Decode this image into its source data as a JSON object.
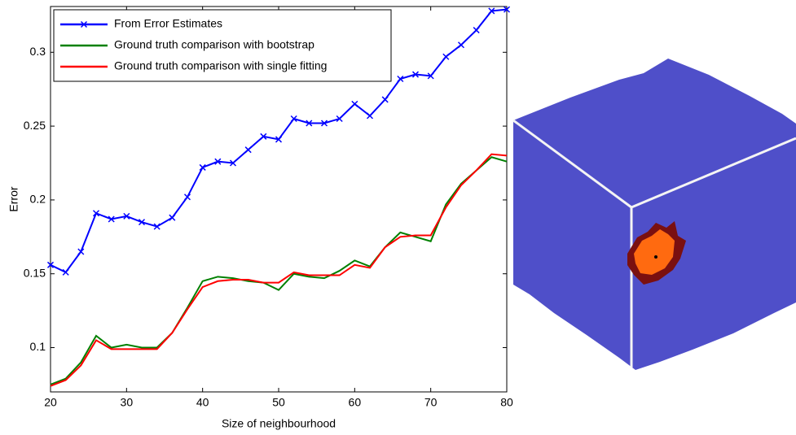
{
  "chart_data": {
    "type": "line",
    "xlabel": "Size of neighbourhood",
    "ylabel": "Error",
    "x": [
      20,
      22,
      24,
      26,
      28,
      30,
      32,
      34,
      36,
      38,
      40,
      42,
      44,
      46,
      48,
      50,
      52,
      54,
      56,
      58,
      60,
      62,
      64,
      66,
      68,
      70,
      72,
      74,
      76,
      78,
      80
    ],
    "series": [
      {
        "name": "From Error Estimates",
        "color": "#0000ff",
        "marker": "x",
        "values": [
          0.156,
          0.151,
          0.165,
          0.191,
          0.187,
          0.189,
          0.185,
          0.182,
          0.188,
          0.202,
          0.222,
          0.226,
          0.225,
          0.234,
          0.243,
          0.241,
          0.255,
          0.252,
          0.252,
          0.255,
          0.265,
          0.257,
          0.268,
          0.282,
          0.285,
          0.284,
          0.297,
          0.305,
          0.315,
          0.328,
          0.329
        ]
      },
      {
        "name": "Ground truth comparison with bootstrap",
        "color": "#008000",
        "values": [
          0.075,
          0.079,
          0.09,
          0.108,
          0.1,
          0.102,
          0.1,
          0.1,
          0.11,
          0.127,
          0.145,
          0.148,
          0.147,
          0.145,
          0.144,
          0.139,
          0.15,
          0.148,
          0.147,
          0.152,
          0.159,
          0.155,
          0.168,
          0.178,
          0.175,
          0.172,
          0.197,
          0.211,
          0.22,
          0.229,
          0.226
        ]
      },
      {
        "name": "Ground truth comparison with single fitting",
        "color": "#ff0000",
        "values": [
          0.074,
          0.078,
          0.088,
          0.105,
          0.099,
          0.099,
          0.099,
          0.099,
          0.11,
          0.126,
          0.141,
          0.145,
          0.146,
          0.146,
          0.144,
          0.144,
          0.151,
          0.149,
          0.149,
          0.149,
          0.156,
          0.154,
          0.168,
          0.175,
          0.176,
          0.176,
          0.195,
          0.21,
          0.22,
          0.231,
          0.23
        ]
      }
    ],
    "xlim": [
      20,
      80
    ],
    "xticks": [
      20,
      30,
      40,
      50,
      60,
      70,
      80
    ],
    "ylim": [
      0.07,
      0.331
    ],
    "yticks": [
      0.1,
      0.15,
      0.2,
      0.25,
      0.3
    ],
    "grid": false,
    "legend": "upper left"
  }
}
